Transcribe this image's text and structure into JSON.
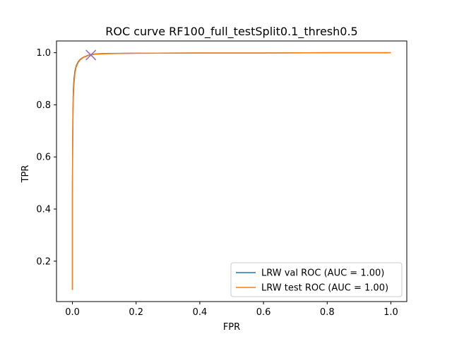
{
  "chart_data": {
    "type": "line",
    "title": "ROC curve RF100_full_testSplit0.1_thresh0.5",
    "xlabel": "FPR",
    "ylabel": "TPR",
    "xlim": [
      -0.05,
      1.05
    ],
    "ylim": [
      0.045,
      1.045
    ],
    "xticks": [
      0.0,
      0.2,
      0.4,
      0.6,
      0.8,
      1.0
    ],
    "xtick_labels": [
      "0.0",
      "0.2",
      "0.4",
      "0.6",
      "0.8",
      "1.0"
    ],
    "yticks": [
      0.2,
      0.4,
      0.6,
      0.8,
      1.0
    ],
    "ytick_labels": [
      "0.2",
      "0.4",
      "0.6",
      "0.8",
      "1.0"
    ],
    "grid": false,
    "legend_position": "bottom-right",
    "series": [
      {
        "name": "LRW val ROC (AUC = 1.00)",
        "color": "#1f77b4",
        "x": [
          0.0,
          0.0,
          0.001,
          0.002,
          0.003,
          0.005,
          0.008,
          0.012,
          0.018,
          0.025,
          0.035,
          0.05,
          0.07,
          0.1,
          0.2,
          0.4,
          0.6,
          0.8,
          1.0
        ],
        "y": [
          0.09,
          0.5,
          0.7,
          0.8,
          0.86,
          0.9,
          0.93,
          0.95,
          0.965,
          0.975,
          0.983,
          0.99,
          0.995,
          0.997,
          0.998,
          0.999,
          0.999,
          1.0,
          1.0
        ]
      },
      {
        "name": "LRW test ROC (AUC = 1.00)",
        "color": "#ff7f0e",
        "x": [
          0.0,
          0.0,
          0.001,
          0.002,
          0.003,
          0.005,
          0.008,
          0.012,
          0.018,
          0.025,
          0.035,
          0.05,
          0.07,
          0.1,
          0.2,
          0.4,
          0.6,
          0.8,
          1.0
        ],
        "y": [
          0.09,
          0.45,
          0.66,
          0.76,
          0.83,
          0.88,
          0.92,
          0.945,
          0.962,
          0.973,
          0.982,
          0.989,
          0.994,
          0.996,
          0.998,
          0.999,
          0.999,
          1.0,
          1.0
        ]
      }
    ],
    "markers": [
      {
        "shape": "x",
        "color": "#9467bd",
        "x": 0.058,
        "y": 0.991
      }
    ]
  }
}
